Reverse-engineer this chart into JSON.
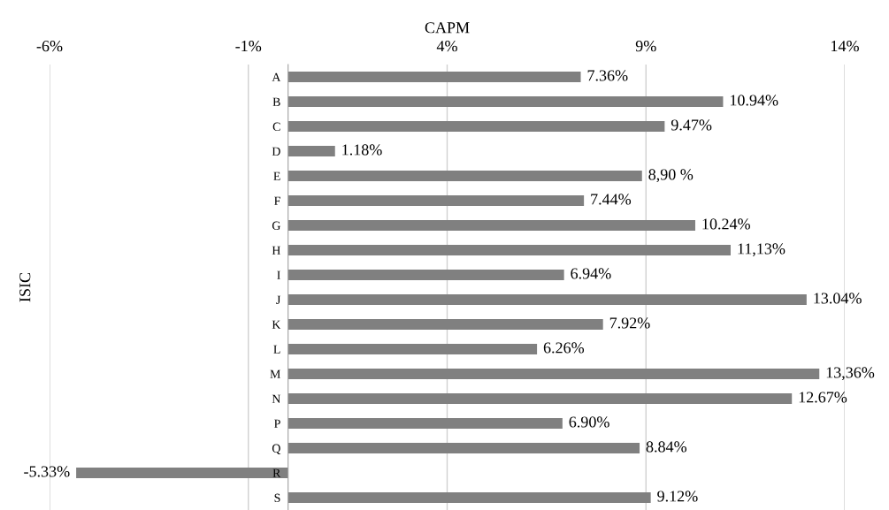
{
  "chart_data": {
    "type": "bar",
    "orientation": "horizontal",
    "xlabel": "CAPM",
    "ylabel": "ISIC",
    "categories": [
      "A",
      "B",
      "C",
      "D",
      "E",
      "F",
      "G",
      "H",
      "I",
      "J",
      "K",
      "L",
      "M",
      "N",
      "P",
      "Q",
      "R",
      "S"
    ],
    "values": [
      7.36,
      10.94,
      9.47,
      1.18,
      8.9,
      7.44,
      10.24,
      11.13,
      6.94,
      13.04,
      7.92,
      6.26,
      13.36,
      12.67,
      6.9,
      8.84,
      -5.33,
      9.12
    ],
    "value_labels": [
      "7.36%",
      "10.94%",
      "9.47%",
      "1.18%",
      "8,90 %",
      "7.44%",
      "10.24%",
      "11,13%",
      "6.94%",
      "13.04%",
      "7.92%",
      "6.26%",
      "13,36%",
      "12.67%",
      "6.90%",
      "8.84%",
      "-5.33%",
      "9.12%"
    ],
    "color": "#808080",
    "xlim": [
      -6,
      14
    ],
    "xticks": [
      {
        "value": -6,
        "label": "-6%"
      },
      {
        "value": -1,
        "label": "-1%"
      },
      {
        "value": 4,
        "label": "4%"
      },
      {
        "value": 9,
        "label": "9%"
      },
      {
        "value": 14,
        "label": "14%"
      }
    ],
    "grid": "x"
  }
}
